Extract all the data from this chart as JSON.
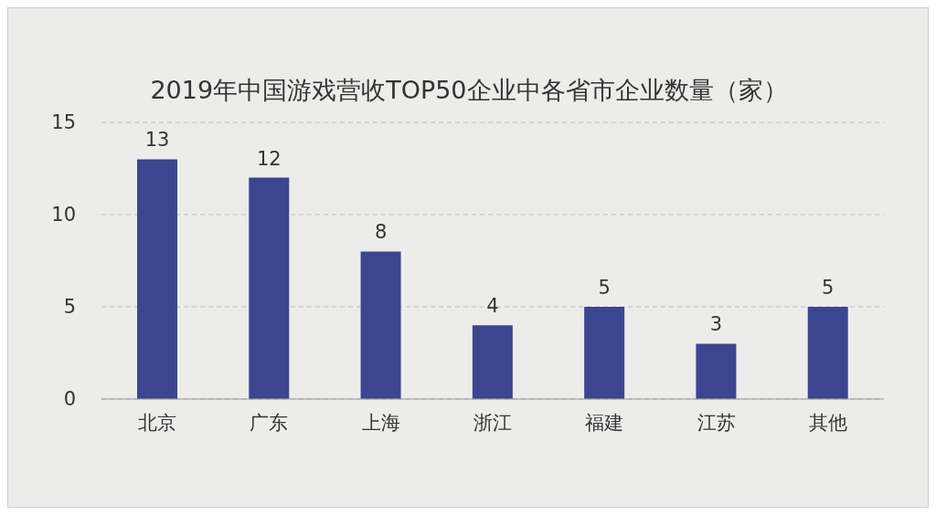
{
  "chart_data": {
    "type": "bar",
    "title": "2019年中国游戏营收TOP50企业中各省市企业数量（家）",
    "categories": [
      "北京",
      "广东",
      "上海",
      "浙江",
      "福建",
      "江苏",
      "其他"
    ],
    "values": [
      13,
      12,
      8,
      4,
      5,
      3,
      5
    ],
    "color": "#3c4590",
    "ylim": [
      0,
      15
    ],
    "yticks": [
      0,
      5,
      10,
      15
    ],
    "grid": "y",
    "data_labels": true
  }
}
